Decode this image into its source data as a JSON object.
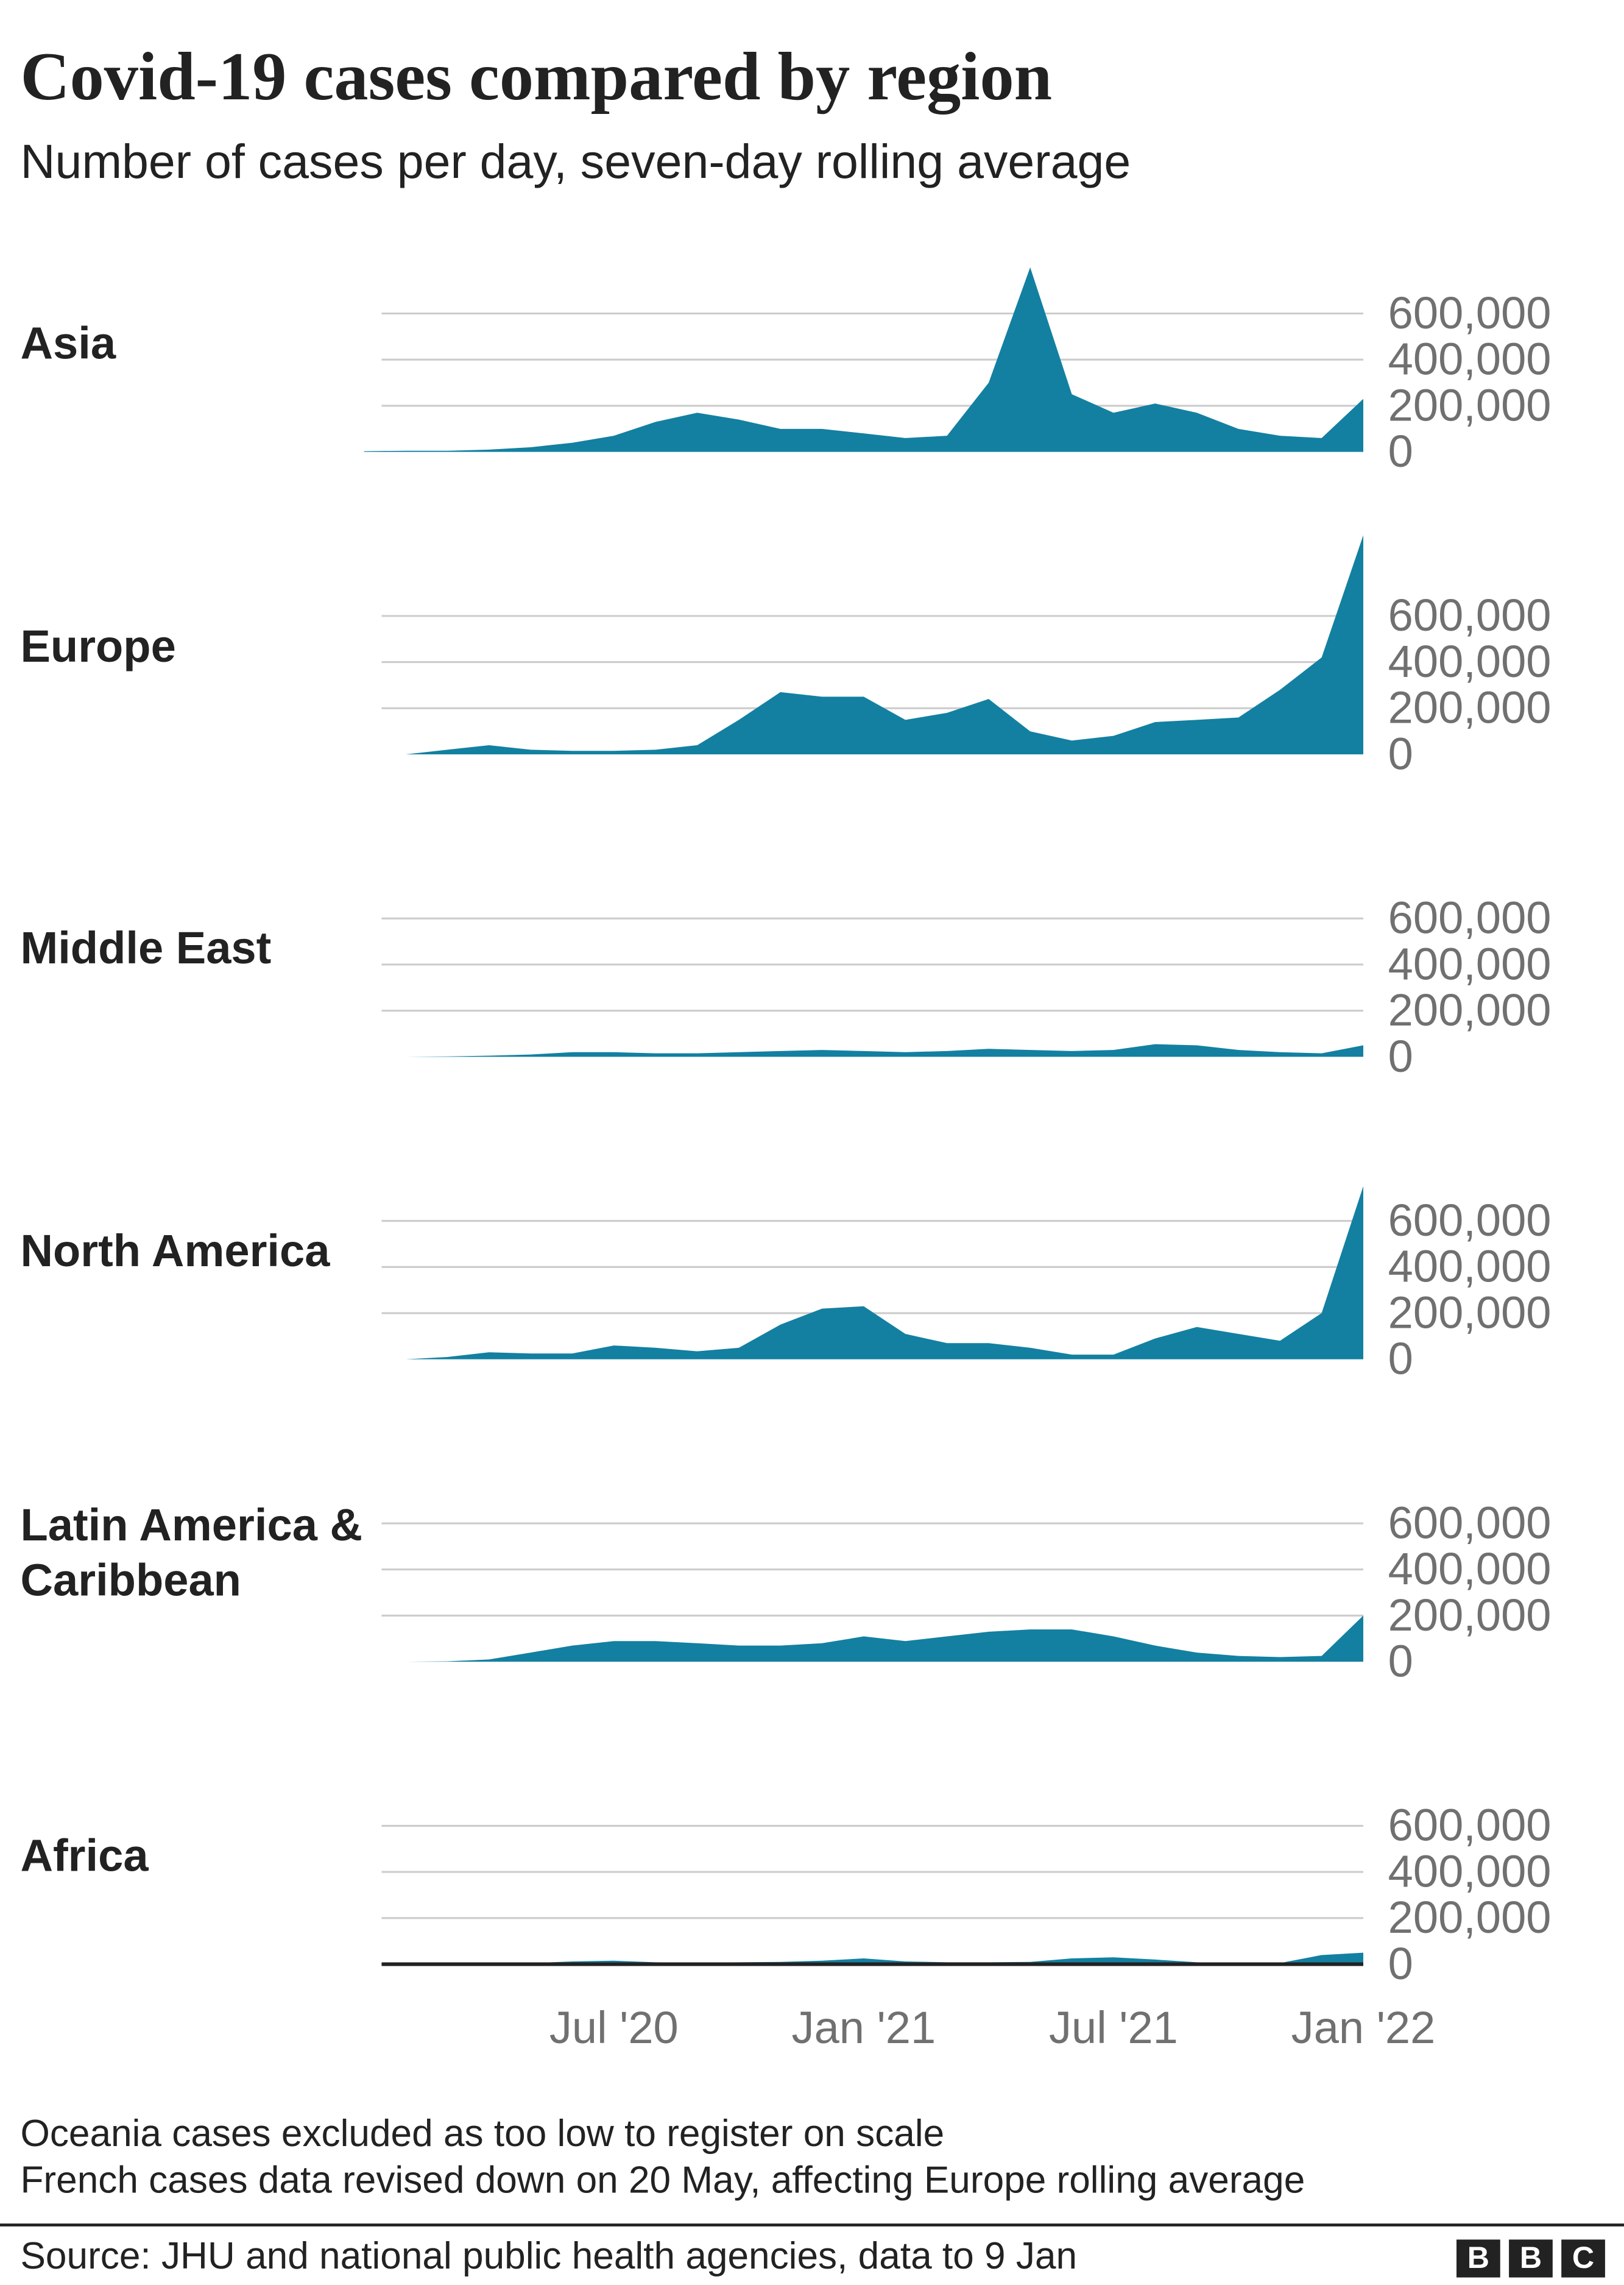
{
  "chart_data": {
    "type": "area",
    "title": "Covid-19 cases compared by region",
    "subtitle": "Number of cases per day, seven-day rolling average",
    "x": [
      "2020-01",
      "2020-02",
      "2020-03",
      "2020-04",
      "2020-05",
      "2020-06",
      "2020-07",
      "2020-08",
      "2020-09",
      "2020-10",
      "2020-11",
      "2020-12",
      "2021-01",
      "2021-02",
      "2021-03",
      "2021-04",
      "2021-05",
      "2021-06",
      "2021-07",
      "2021-08",
      "2021-09",
      "2021-10",
      "2021-11",
      "2021-12",
      "2022-01"
    ],
    "xlim": [
      "2020-01",
      "2022-01"
    ],
    "xticks": [
      {
        "value": "2020-07",
        "label": "Jul '20"
      },
      {
        "value": "2021-01",
        "label": "Jan '21"
      },
      {
        "value": "2021-07",
        "label": "Jul '21"
      },
      {
        "value": "2022-01",
        "label": "Jan '22"
      }
    ],
    "ylim": [
      0,
      600000
    ],
    "yticks": [
      0,
      {
        "value": 200000,
        "label": "200,000"
      },
      {
        "value": 400000,
        "label": "400,000"
      },
      {
        "value": 600000,
        "label": "600,000"
      }
    ],
    "grid": true,
    "series": [
      {
        "name": "Asia",
        "color": "#1380a1",
        "values": [
          3000,
          5000,
          5000,
          10000,
          20000,
          40000,
          70000,
          130000,
          170000,
          140000,
          100000,
          100000,
          80000,
          60000,
          70000,
          300000,
          800000,
          250000,
          170000,
          210000,
          170000,
          100000,
          70000,
          60000,
          230000
        ]
      },
      {
        "name": "Europe",
        "color": "#1380a1",
        "values": [
          0,
          0,
          20000,
          40000,
          20000,
          15000,
          15000,
          20000,
          40000,
          150000,
          270000,
          250000,
          250000,
          150000,
          180000,
          240000,
          100000,
          60000,
          80000,
          140000,
          150000,
          160000,
          280000,
          420000,
          950000
        ]
      },
      {
        "name": "Middle East",
        "color": "#1380a1",
        "values": [
          0,
          0,
          2000,
          5000,
          10000,
          20000,
          20000,
          15000,
          15000,
          20000,
          25000,
          30000,
          25000,
          20000,
          25000,
          35000,
          30000,
          25000,
          30000,
          55000,
          50000,
          30000,
          20000,
          15000,
          50000
        ]
      },
      {
        "name": "North America",
        "color": "#1380a1",
        "values": [
          0,
          0,
          10000,
          30000,
          25000,
          25000,
          60000,
          50000,
          35000,
          50000,
          150000,
          220000,
          230000,
          110000,
          70000,
          70000,
          50000,
          20000,
          20000,
          90000,
          140000,
          110000,
          80000,
          200000,
          750000
        ]
      },
      {
        "name": "Latin America & Caribbean",
        "color": "#1380a1",
        "values": [
          0,
          0,
          2000,
          10000,
          40000,
          70000,
          90000,
          90000,
          80000,
          70000,
          70000,
          80000,
          110000,
          90000,
          110000,
          130000,
          140000,
          140000,
          110000,
          70000,
          40000,
          25000,
          20000,
          25000,
          200000
        ]
      },
      {
        "name": "Africa",
        "color": "#1380a1",
        "values": [
          0,
          0,
          1000,
          3000,
          5000,
          12000,
          15000,
          8000,
          6000,
          8000,
          10000,
          15000,
          25000,
          12000,
          8000,
          8000,
          10000,
          25000,
          30000,
          20000,
          8000,
          5000,
          5000,
          40000,
          50000
        ]
      }
    ],
    "notes": [
      "Oceania cases excluded as too low to register on scale",
      "French cases data revised down on 20 May, affecting Europe rolling average"
    ],
    "source": "Source: JHU and national public health agencies, data to 9 Jan",
    "logo": [
      "B",
      "B",
      "C"
    ]
  }
}
